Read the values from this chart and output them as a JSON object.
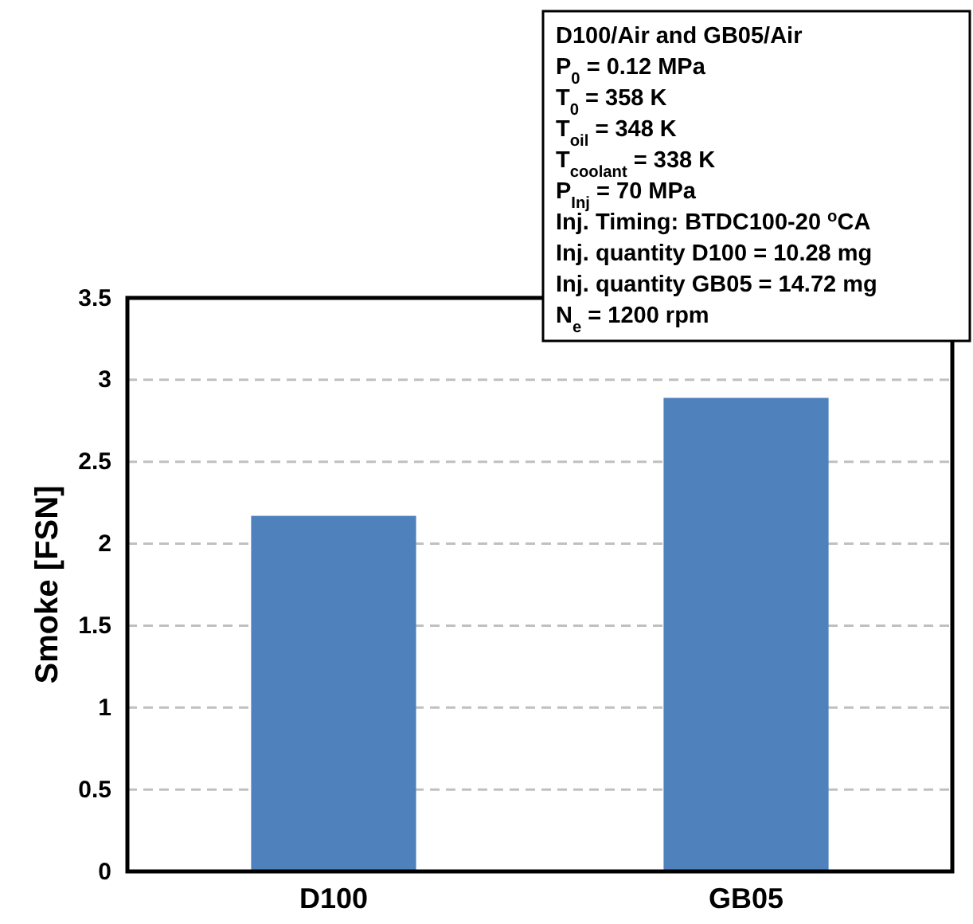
{
  "chart_data": {
    "type": "bar",
    "ylabel": "Smoke [FSN]",
    "categories": [
      "D100",
      "GB05"
    ],
    "values": [
      2.17,
      2.89
    ],
    "color": "#4f81bd",
    "ylim": [
      0,
      3.5
    ],
    "yticks": [
      0,
      0.5,
      1,
      1.5,
      2,
      2.5,
      3,
      3.5
    ],
    "grid": "y",
    "annotations": [
      "D100/Air and GB05/Air",
      "P$_{0}$ = 0.12 MPa",
      "T$_{0}$ = 358 K",
      "T$_{oil}$ = 348 K",
      "T$_{coolant}$ = 338 K",
      "P$_{Inj}$ = 70 MPa",
      "Inj. Timing:  BTDC100-20 $^{o}$CA",
      "Inj. quantity  D100 = 10.28 mg",
      "Inj. quantity  GB05 = 14.72 mg",
      "N$_{e}$ = 1200 rpm"
    ]
  }
}
